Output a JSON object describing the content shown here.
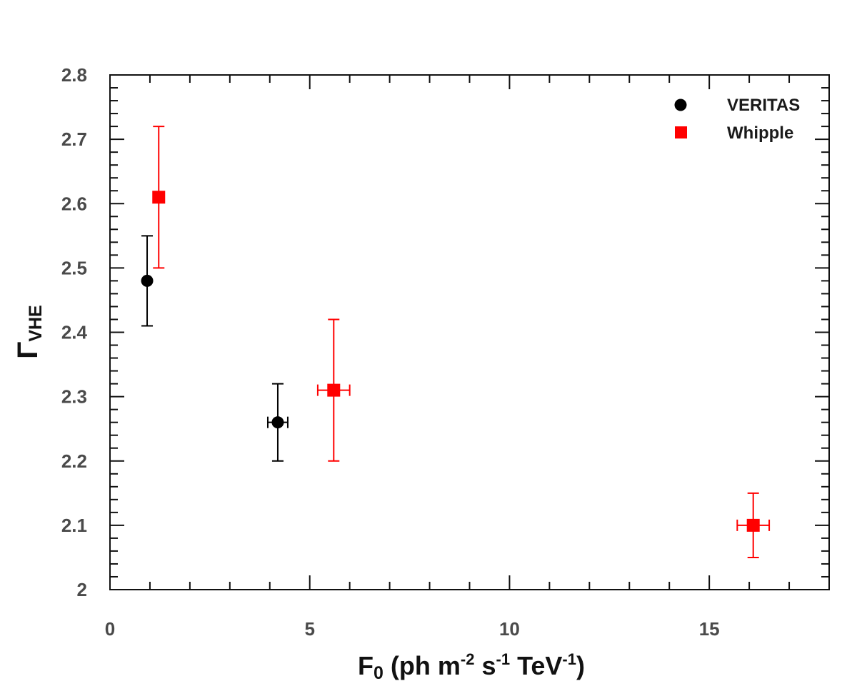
{
  "chart_data": {
    "type": "scatter",
    "xlim": [
      0,
      18
    ],
    "ylim": [
      2.0,
      2.8
    ],
    "x_ticks": [
      0,
      5,
      10,
      15
    ],
    "x_tick_labels": [
      "0",
      "5",
      "10",
      "15"
    ],
    "y_ticks": [
      2.0,
      2.1,
      2.2,
      2.3,
      2.4,
      2.5,
      2.6,
      2.7,
      2.8
    ],
    "y_tick_labels": [
      "2",
      "2.1",
      "2.2",
      "2.3",
      "2.4",
      "2.5",
      "2.6",
      "2.7",
      "2.8"
    ],
    "xlabel": {
      "main": "F",
      "sub": "0",
      "prefix": " (ph m",
      "sup1": "-2",
      "mid1": " s",
      "sup2": "-1",
      "mid2": " TeV",
      "sup3": "-1",
      "suffix": ")"
    },
    "ylabel": {
      "main": "Γ",
      "sub": "VHE"
    },
    "grid": false,
    "legend_position": "top-right",
    "series": [
      {
        "name": "VERITAS",
        "marker": "circle",
        "color": "#000000",
        "points": [
          {
            "x": 0.93,
            "y": 2.48,
            "xerr": 0,
            "yerr_low": 0.07,
            "yerr_high": 0.07
          },
          {
            "x": 4.2,
            "y": 2.26,
            "xerr": 0.25,
            "yerr_low": 0.06,
            "yerr_high": 0.06
          }
        ]
      },
      {
        "name": "Whipple",
        "marker": "square",
        "color": "#ff0000",
        "points": [
          {
            "x": 1.22,
            "y": 2.61,
            "xerr": 0,
            "yerr_low": 0.11,
            "yerr_high": 0.11
          },
          {
            "x": 5.6,
            "y": 2.31,
            "xerr": 0.4,
            "yerr_low": 0.11,
            "yerr_high": 0.11
          },
          {
            "x": 16.1,
            "y": 2.1,
            "xerr": 0.4,
            "yerr_low": 0.05,
            "yerr_high": 0.05
          }
        ]
      }
    ]
  }
}
